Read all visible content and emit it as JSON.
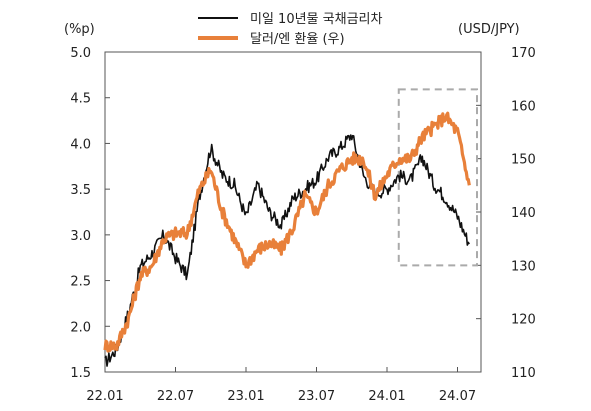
{
  "chart_data": {
    "type": "line",
    "title": "",
    "left_axis": {
      "unit_label": "(%p)",
      "ylim": [
        1.5,
        5.0
      ],
      "ticks": [
        "1.5",
        "2.0",
        "2.5",
        "3.0",
        "3.5",
        "4.0",
        "4.5",
        "5.0"
      ]
    },
    "right_axis": {
      "unit_label": "(USD/JPY)",
      "ylim": [
        110,
        170
      ],
      "ticks": [
        "110",
        "120",
        "130",
        "140",
        "150",
        "160",
        "170"
      ]
    },
    "x_axis": {
      "ticks": [
        "22.01",
        "22.07",
        "23.01",
        "23.07",
        "24.01",
        "24.07"
      ],
      "range": [
        "22.01",
        "24.09"
      ]
    },
    "legend_position": "top-center",
    "highlight_box": {
      "x_start": "24.02",
      "x_end": "24.09",
      "right_y_range": [
        130,
        163
      ],
      "style": "dashed",
      "color": "#aaaaaa"
    },
    "series": [
      {
        "name": "미일 10년물 국채금리차",
        "axis": "left",
        "color": "#111111",
        "x": [
          "22.01",
          "22.02",
          "22.03",
          "22.04",
          "22.05",
          "22.06",
          "22.07",
          "22.08",
          "22.09",
          "22.10",
          "22.11",
          "22.12",
          "23.01",
          "23.02",
          "23.03",
          "23.04",
          "23.05",
          "23.06",
          "23.07",
          "23.08",
          "23.09",
          "23.10",
          "23.11",
          "23.12",
          "24.01",
          "24.02",
          "24.03",
          "24.04",
          "24.05",
          "24.06",
          "24.07",
          "24.08"
        ],
        "values": [
          1.6,
          1.75,
          2.15,
          2.65,
          2.8,
          3.0,
          2.75,
          2.55,
          3.4,
          3.95,
          3.65,
          3.55,
          3.2,
          3.55,
          3.25,
          3.1,
          3.4,
          3.5,
          3.6,
          3.85,
          3.95,
          4.1,
          3.65,
          3.45,
          3.5,
          3.65,
          3.6,
          3.85,
          3.55,
          3.4,
          3.2,
          2.9
        ]
      },
      {
        "name": "달러/엔 환율 (우)",
        "axis": "right",
        "color": "#e8803a",
        "x": [
          "22.01",
          "22.02",
          "22.03",
          "22.04",
          "22.05",
          "22.06",
          "22.07",
          "22.08",
          "22.09",
          "22.10",
          "22.11",
          "22.12",
          "23.01",
          "23.02",
          "23.03",
          "23.04",
          "23.05",
          "23.06",
          "23.07",
          "23.08",
          "23.09",
          "23.10",
          "23.11",
          "23.12",
          "24.01",
          "24.02",
          "24.03",
          "24.04",
          "24.05",
          "24.06",
          "24.07",
          "24.08"
        ],
        "values": [
          115,
          115,
          120,
          128,
          130,
          135,
          136,
          136,
          144,
          148,
          140,
          135,
          130,
          133,
          134,
          133,
          137,
          143,
          140,
          145,
          148,
          150,
          150,
          143,
          147,
          150,
          150,
          154,
          156,
          158,
          155,
          145
        ]
      }
    ]
  }
}
